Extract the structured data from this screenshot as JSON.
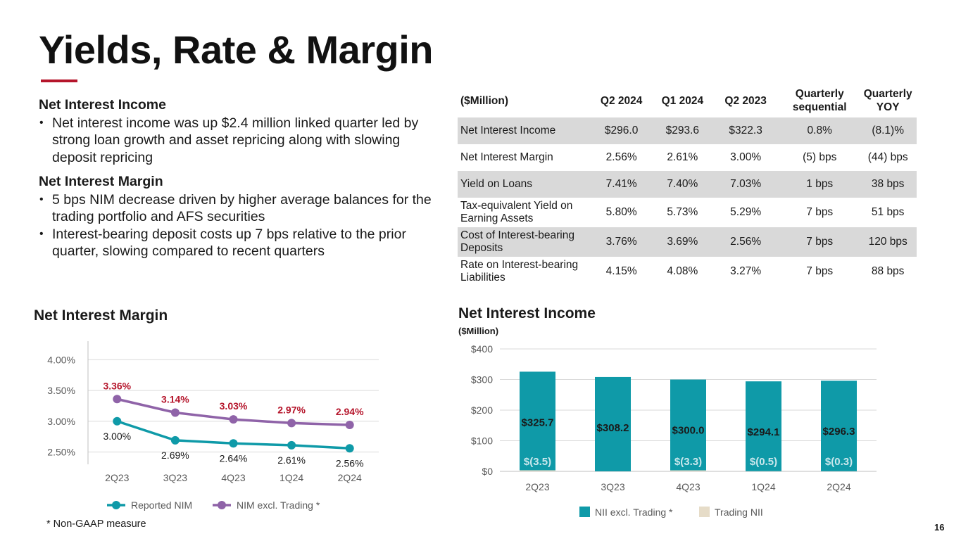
{
  "title": "Yields, Rate & Margin",
  "sections": [
    {
      "heading": "Net Interest Income",
      "bullets": [
        "Net interest income was up $2.4 million linked quarter led by strong loan growth and asset repricing along with slowing deposit repricing"
      ]
    },
    {
      "heading": "Net Interest Margin",
      "bullets": [
        "5 bps NIM decrease driven by higher average balances for the trading portfolio and AFS securities",
        "Interest-bearing deposit costs up 7 bps relative to the prior quarter, slowing compared to recent quarters"
      ]
    }
  ],
  "table": {
    "headers": [
      "($Million)",
      "Q2 2024",
      "Q1 2024",
      "Q2 2023",
      "Quarterly sequential",
      "Quarterly YOY"
    ],
    "rows": [
      [
        "Net Interest Income",
        "$296.0",
        "$293.6",
        "$322.3",
        "0.8%",
        "(8.1)%"
      ],
      [
        "Net Interest Margin",
        "2.56%",
        "2.61%",
        "3.00%",
        "(5) bps",
        "(44) bps"
      ],
      [
        "Yield on Loans",
        "7.41%",
        "7.40%",
        "7.03%",
        "1 bps",
        "38 bps"
      ],
      [
        "Tax-equivalent Yield on Earning Assets",
        "5.80%",
        "5.73%",
        "5.29%",
        "7 bps",
        "51 bps"
      ],
      [
        "Cost of Interest-bearing Deposits",
        "3.76%",
        "3.69%",
        "2.56%",
        "7 bps",
        "120 bps"
      ],
      [
        "Rate on Interest-bearing Liabilities",
        "4.15%",
        "4.08%",
        "3.27%",
        "7 bps",
        "88 bps"
      ]
    ]
  },
  "footnote": "*   Non-GAAP measure",
  "page_number": "16",
  "chart_data": [
    {
      "type": "line",
      "title": "Net Interest Margin",
      "categories": [
        "2Q23",
        "3Q23",
        "4Q23",
        "1Q24",
        "2Q24"
      ],
      "ylim": [
        2.3,
        4.3
      ],
      "yticks": [
        2.5,
        3.0,
        3.5,
        4.0
      ],
      "ytick_labels": [
        "2.50%",
        "3.00%",
        "3.50%",
        "4.00%"
      ],
      "grid": true,
      "legend": "bottom",
      "series": [
        {
          "name": "Reported NIM",
          "color": "#0f9aa8",
          "values": [
            3.0,
            2.69,
            2.64,
            2.61,
            2.56
          ],
          "labels": [
            "3.00%",
            "2.69%",
            "2.64%",
            "2.61%",
            "2.56%"
          ],
          "label_color": "#1a1a1a"
        },
        {
          "name": "NIM excl. Trading *",
          "color": "#8f63a8",
          "values": [
            3.36,
            3.14,
            3.03,
            2.97,
            2.94
          ],
          "labels": [
            "3.36%",
            "3.14%",
            "3.03%",
            "2.97%",
            "2.94%"
          ],
          "label_color": "#b5152b"
        }
      ]
    },
    {
      "type": "bar",
      "stacked": true,
      "title": "Net Interest Income",
      "subtitle": "($Million)",
      "categories": [
        "2Q23",
        "3Q23",
        "4Q23",
        "1Q24",
        "2Q24"
      ],
      "ylim": [
        0,
        400
      ],
      "yticks": [
        0,
        100,
        200,
        300,
        400
      ],
      "ytick_labels": [
        "$0",
        "$100",
        "$200",
        "$300",
        "$400"
      ],
      "grid": true,
      "legend": "bottom",
      "series": [
        {
          "name": "NII excl. Trading *",
          "color": "#0f9aa8",
          "values": [
            325.7,
            308.2,
            300.0,
            294.1,
            296.3
          ],
          "labels": [
            "$325.7",
            "$308.2",
            "$300.0",
            "$294.1",
            "$296.3"
          ]
        },
        {
          "name": "Trading NII",
          "color": "#e6dcc8",
          "values": [
            -3.5,
            0,
            -3.3,
            -0.5,
            -0.3
          ],
          "labels": [
            "$(3.5)",
            "",
            "$(3.3)",
            "$(0.5)",
            "$(0.3)"
          ],
          "label_color": "#c9e7ec"
        }
      ]
    }
  ]
}
